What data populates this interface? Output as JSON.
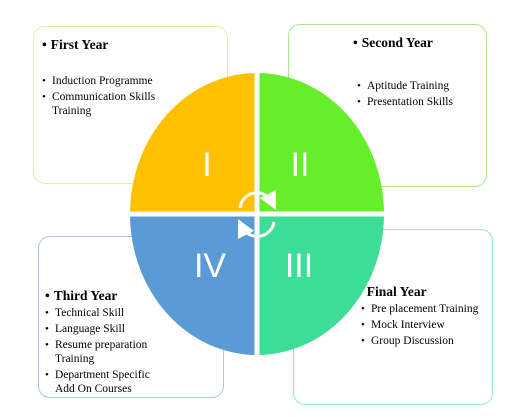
{
  "colors": {
    "q1": "#FFC000",
    "q2": "#66EE2A",
    "q3": "#3DDC97",
    "q4": "#5B9BD5",
    "border_q1": "#F5E6A0",
    "border_q2": "#A9E58F",
    "border_q3": "#9DE8C4",
    "border_q4": "#A8C8E8",
    "numeral": "#FFFFFF"
  },
  "quadrants": [
    {
      "numeral": "I",
      "year": "First Year",
      "items": [
        "Induction Programme",
        "Communication Skills Training"
      ]
    },
    {
      "numeral": "II",
      "year": "Second Year",
      "items": [
        "Aptitude Training",
        "Presentation Skills"
      ]
    },
    {
      "numeral": "III",
      "year": "Final Year",
      "items": [
        "Pre placement Training",
        "Mock Interview",
        "Group Discussion"
      ]
    },
    {
      "numeral": "IV",
      "year": "Third Year",
      "items": [
        "Technical Skill",
        "Language Skill",
        "Resume preparation Training",
        "Department Specific Add On Courses"
      ]
    }
  ],
  "icons": {
    "center": "cycle-arrows-icon"
  }
}
